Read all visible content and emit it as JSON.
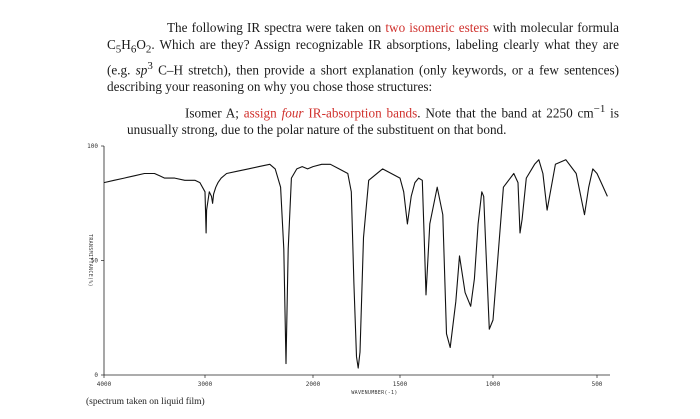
{
  "problem": {
    "p1_a": "The following IR spectra were taken on ",
    "p1_red": "two isomeric esters",
    "p1_b": " with molecular formula C",
    "sub5": "5",
    "p1_c": "H",
    "sub6": "6",
    "p1_d": "O",
    "sub2": "2",
    "p1_e": ". Which are they? Assign recognizable IR absorptions, labeling clearly what they are (e.g. ",
    "sp": "sp",
    "sup3": "3",
    "p1_f": " C–H stretch), then provide a short explanation (only keywords, or a few sentences) describing your reasoning on why you chose those structures:"
  },
  "isomer": {
    "a": "Isomer A; ",
    "red1": "assign ",
    "red_italic": "four",
    "red2": " IR-absorption bands",
    "b": ". Note that the band at 2250 cm",
    "sup": "−1",
    "c": " is unusually strong, due to the polar nature of the substituent on that bond."
  },
  "chart_data": {
    "type": "line",
    "xlabel": "WAVENUMBER(-1)",
    "ylabel": "TRANSMITTANCE(%)",
    "xlim": [
      4000,
      450
    ],
    "ylim": [
      0,
      100
    ],
    "x_ticks": [
      "4000",
      "3000",
      "2000",
      "1500",
      "1000",
      "500"
    ],
    "y_ticks": [
      "100",
      "50",
      "0"
    ],
    "series": [
      {
        "x": [
          4000,
          3900,
          3800,
          3700,
          3600,
          3500,
          3450,
          3400,
          3300,
          3200,
          3100,
          3050,
          3000,
          2995,
          2990,
          2985,
          2960,
          2940,
          2930,
          2920,
          2900,
          2880,
          2850,
          2800,
          2700,
          2600,
          2500,
          2400,
          2350,
          2300,
          2270,
          2250,
          2230,
          2200,
          2150,
          2100,
          2050,
          2000,
          1950,
          1900,
          1850,
          1800,
          1780,
          1765,
          1750,
          1740,
          1730,
          1710,
          1680,
          1600,
          1550,
          1500,
          1480,
          1460,
          1440,
          1420,
          1400,
          1380,
          1370,
          1360,
          1340,
          1300,
          1270,
          1250,
          1230,
          1200,
          1180,
          1150,
          1120,
          1100,
          1080,
          1060,
          1050,
          1040,
          1020,
          1000,
          950,
          900,
          880,
          870,
          860,
          840,
          800,
          780,
          760,
          740,
          700,
          650,
          600,
          560,
          540,
          520,
          500,
          480,
          450
        ],
        "y": [
          84,
          85,
          86,
          87,
          88,
          88,
          87,
          86,
          86,
          85,
          85,
          84,
          80,
          72,
          62,
          72,
          80,
          78,
          75,
          79,
          82,
          84,
          86,
          88,
          89,
          90,
          91,
          92,
          90,
          82,
          55,
          5,
          55,
          86,
          90,
          91,
          90,
          91,
          92,
          92,
          90,
          88,
          80,
          40,
          8,
          3,
          10,
          60,
          85,
          90,
          88,
          86,
          80,
          66,
          78,
          84,
          86,
          85,
          60,
          35,
          66,
          82,
          70,
          18,
          12,
          32,
          52,
          36,
          30,
          42,
          66,
          80,
          78,
          58,
          20,
          24,
          82,
          88,
          84,
          62,
          68,
          86,
          92,
          94,
          88,
          72,
          92,
          94,
          88,
          70,
          82,
          90,
          88,
          84,
          78
        ]
      }
    ]
  },
  "caption": "(spectrum taken on liquid film)"
}
